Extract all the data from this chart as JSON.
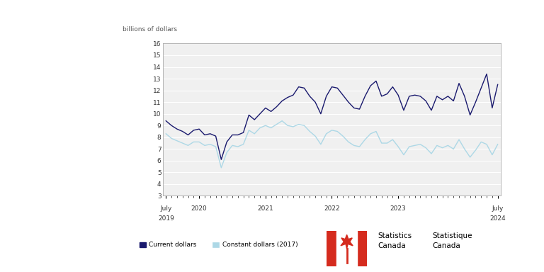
{
  "ylabel": "billions of dollars",
  "ylim": [
    3,
    16
  ],
  "yticks": [
    3,
    4,
    5,
    6,
    7,
    8,
    9,
    10,
    11,
    12,
    13,
    14,
    15,
    16
  ],
  "current_color": "#1a1a6e",
  "constant_color": "#add8e6",
  "legend_label_current": "Current dollars",
  "legend_label_constant": "Constant dollars (2017)",
  "current_dollars": [
    9.4,
    9.0,
    8.7,
    8.5,
    8.2,
    8.6,
    8.7,
    8.2,
    8.3,
    8.1,
    6.1,
    7.6,
    8.2,
    8.2,
    8.4,
    9.9,
    9.5,
    10.0,
    10.5,
    10.2,
    10.6,
    11.1,
    11.4,
    11.6,
    12.3,
    12.2,
    11.5,
    11.0,
    10.0,
    11.5,
    12.3,
    12.2,
    11.6,
    11.0,
    10.5,
    10.4,
    11.5,
    12.4,
    12.8,
    11.5,
    11.7,
    12.3,
    11.6,
    10.3,
    11.5,
    11.6,
    11.5,
    11.1,
    10.3,
    11.5,
    11.2,
    11.5,
    11.1,
    12.6,
    11.5,
    9.9,
    11.0,
    12.2,
    13.4,
    10.5,
    12.5
  ],
  "constant_dollars": [
    8.3,
    7.9,
    7.7,
    7.5,
    7.3,
    7.6,
    7.6,
    7.3,
    7.4,
    7.2,
    5.4,
    6.7,
    7.3,
    7.2,
    7.4,
    8.6,
    8.3,
    8.8,
    9.0,
    8.8,
    9.1,
    9.4,
    9.0,
    8.9,
    9.1,
    9.0,
    8.5,
    8.1,
    7.4,
    8.3,
    8.6,
    8.5,
    8.1,
    7.6,
    7.3,
    7.2,
    7.8,
    8.3,
    8.5,
    7.5,
    7.5,
    7.8,
    7.2,
    6.5,
    7.2,
    7.3,
    7.4,
    7.1,
    6.6,
    7.3,
    7.1,
    7.3,
    7.0,
    7.8,
    7.0,
    6.3,
    6.9,
    7.6,
    7.4,
    6.5,
    7.4
  ],
  "n_months": 61,
  "major_positions": [
    0,
    6,
    18,
    30,
    42,
    60
  ],
  "major_line1": [
    "July",
    "",
    "",
    "",
    "",
    "July"
  ],
  "major_line2": [
    "2019",
    "2020",
    "2021",
    "2022",
    "2023",
    "2024"
  ]
}
